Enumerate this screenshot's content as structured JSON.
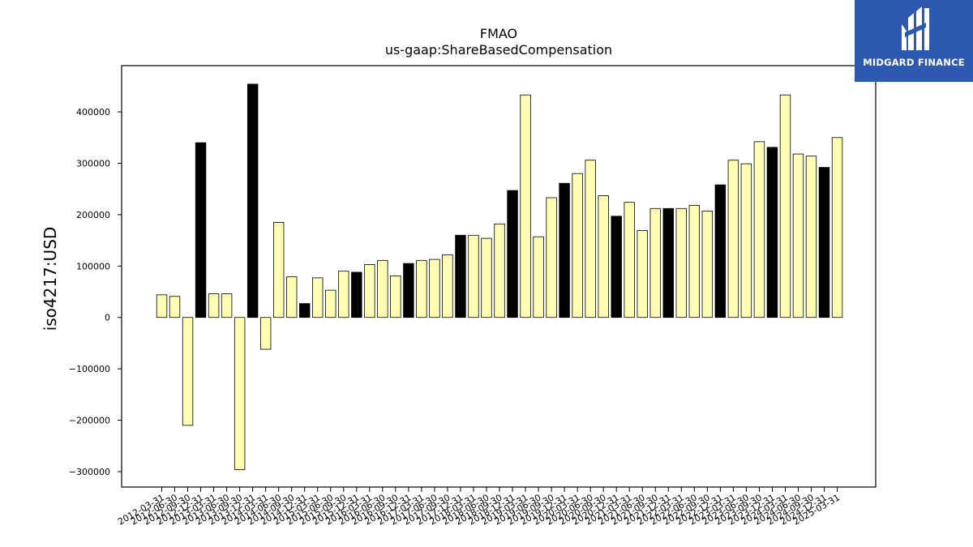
{
  "header": {
    "title": "FMAO",
    "subtitle": "us-gaap:ShareBasedCompensation"
  },
  "axes": {
    "ylabel": "iso4217:USD"
  },
  "logo": {
    "text": "MIDGARD FINANCE",
    "icon": "midgard-monogram-icon",
    "background": "#2d5ab0"
  },
  "colors": {
    "bar_light": "#ffffb3",
    "bar_dark": "#000000",
    "outline": "#000000"
  },
  "chart_data": {
    "type": "bar",
    "title": "FMAO",
    "subtitle": "us-gaap:ShareBasedCompensation",
    "xlabel": "",
    "ylabel": "iso4217:USD",
    "ylim": [
      -330000,
      490000
    ],
    "yticks": [
      -300000,
      -200000,
      -100000,
      0,
      100000,
      200000,
      300000,
      400000
    ],
    "grid": false,
    "legend": "none",
    "categories": [
      "2012-03-31",
      "2012-06-30",
      "2012-09-30",
      "2012-12-31",
      "2013-03-31",
      "2013-06-30",
      "2013-09-30",
      "2013-12-31",
      "2014-03-31",
      "2014-06-30",
      "2014-09-30",
      "2014-12-31",
      "2015-03-31",
      "2015-06-30",
      "2015-09-30",
      "2015-12-31",
      "2016-03-31",
      "2016-06-30",
      "2016-09-30",
      "2016-12-31",
      "2017-03-31",
      "2017-06-30",
      "2017-09-30",
      "2017-12-31",
      "2018-03-31",
      "2018-06-30",
      "2018-09-30",
      "2018-12-31",
      "2019-03-31",
      "2019-06-30",
      "2019-09-30",
      "2019-12-31",
      "2020-03-31",
      "2020-06-30",
      "2020-09-30",
      "2020-12-31",
      "2021-03-31",
      "2021-06-30",
      "2021-09-30",
      "2021-12-31",
      "2022-03-31",
      "2022-06-30",
      "2022-09-30",
      "2022-12-31",
      "2023-03-31",
      "2023-06-30",
      "2023-09-30",
      "2023-12-31",
      "2024-03-31",
      "2024-06-30",
      "2024-09-30",
      "2024-12-31",
      "2025-03-31"
    ],
    "tick_labels": [
      "2012-03-31",
      "2012-06-30",
      "2012-09-30",
      "2012-12-31",
      "2013-03-31",
      "2013-06-30",
      "2013-09-30",
      "2013-12-31",
      "2014-03-31",
      "2014-06-30",
      "2014-09-30",
      "2014-12-31",
      "2015-03-31",
      "2015-06-30",
      "2015-09-30",
      "2015-12-31",
      "2016-03-31",
      "2016-06-30",
      "2016-09-30",
      "2016-12-31",
      "2017-03-31",
      "2017-06-30",
      "2017-09-30",
      "2017-12-31",
      "2018-03-31",
      "2018-06-30",
      "2018-09-30",
      "2018-12-31",
      "2019-03-31",
      "2019-06-30",
      "2019-09-30",
      "2019-12-31",
      "2020-03-31",
      "2020-06-30",
      "2020-09-30",
      "2020-12-31",
      "2021-03-31",
      "2021-06-30",
      "2021-09-30",
      "2021-12-31",
      "2022-03-31",
      "2022-06-30",
      "2022-09-30",
      "2022-12-31",
      "2023-03-31",
      "2023-06-30",
      "2023-09-30",
      "2023-12-31",
      "2024-03-31",
      "2024-06-30",
      "2024-09-30",
      "2024-12-31",
      "2025-03-31"
    ],
    "values": [
      44000,
      41000,
      -210000,
      340000,
      46000,
      46000,
      -296000,
      454000,
      -62000,
      185000,
      79000,
      27000,
      77000,
      53000,
      90000,
      88000,
      103000,
      111000,
      81000,
      105000,
      111000,
      113000,
      122000,
      160000,
      160000,
      154000,
      182000,
      247000,
      433000,
      157000,
      233000,
      261000,
      280000,
      306000,
      237000,
      197000,
      224000,
      169000,
      212000,
      212000,
      212000,
      218000,
      207000,
      258000,
      306000,
      299000,
      342000,
      331000,
      433000,
      318000,
      314000,
      292000,
      350000
    ],
    "highlight": [
      false,
      false,
      false,
      true,
      false,
      false,
      false,
      true,
      false,
      false,
      false,
      true,
      false,
      false,
      false,
      true,
      false,
      false,
      false,
      true,
      false,
      false,
      false,
      true,
      false,
      false,
      false,
      true,
      false,
      false,
      false,
      true,
      false,
      false,
      false,
      true,
      false,
      false,
      false,
      true,
      false,
      false,
      false,
      true,
      false,
      false,
      false,
      true,
      false,
      false,
      false,
      true,
      false
    ]
  }
}
